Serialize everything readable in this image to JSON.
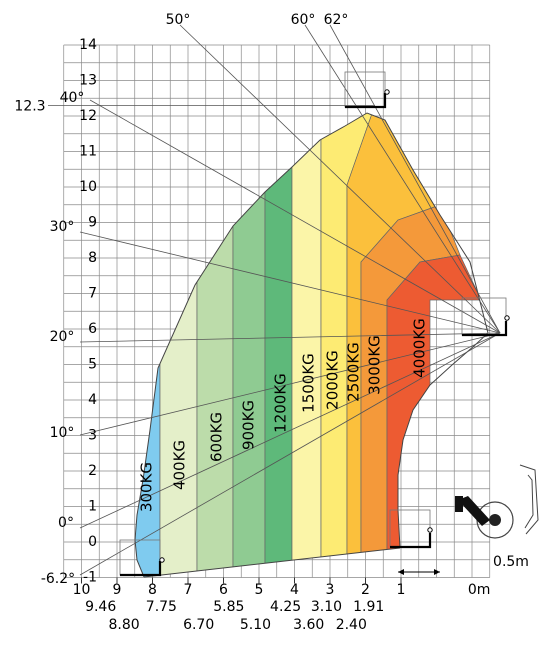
{
  "chart_data": {
    "type": "area",
    "title": "",
    "xlabel": "",
    "ylabel": "",
    "xlim": [
      10.8,
      -1.5
    ],
    "ylim": [
      -1,
      14
    ],
    "grid": true,
    "x_ticks": [
      10,
      9,
      8,
      7,
      6,
      5,
      4,
      3,
      2,
      1
    ],
    "x_tick_labels": [
      "10",
      "9",
      "8",
      "7",
      "6",
      "5",
      "4",
      "3",
      "2",
      "1"
    ],
    "x_sub_labels_row1": [
      {
        "x": 9.46,
        "label": "9.46"
      },
      {
        "x": 7.75,
        "label": "7.75"
      },
      {
        "x": 5.85,
        "label": "5.85"
      },
      {
        "x": 4.25,
        "label": "4.25"
      },
      {
        "x": 3.1,
        "label": "3.10"
      },
      {
        "x": 1.91,
        "label": "1.91"
      }
    ],
    "x_sub_labels_row2": [
      {
        "x": 8.8,
        "label": "8.80"
      },
      {
        "x": 6.7,
        "label": "6.70"
      },
      {
        "x": 5.1,
        "label": "5.10"
      },
      {
        "x": 3.6,
        "label": "3.60"
      },
      {
        "x": 2.4,
        "label": "2.40"
      }
    ],
    "y_ticks": [
      14,
      13,
      12,
      11,
      10,
      9,
      8,
      7,
      6,
      5,
      4,
      3,
      2,
      1,
      0,
      -1
    ],
    "y_tick_labels": [
      "14",
      "13",
      "12",
      "11",
      "10",
      "9",
      "8",
      "7",
      "6",
      "5",
      "4",
      "3",
      "2",
      "1",
      "0",
      "-1"
    ],
    "zero_label": "0m",
    "scale_label": "0.5m",
    "max_height_label": "12.3",
    "angles": [
      {
        "label": "-6.2°",
        "deg": -6.2
      },
      {
        "label": "0°",
        "deg": 0
      },
      {
        "label": "10°",
        "deg": 10
      },
      {
        "label": "20°",
        "deg": 20
      },
      {
        "label": "30°",
        "deg": 30
      },
      {
        "label": "40°",
        "deg": 40
      },
      {
        "label": "50°",
        "deg": 50
      },
      {
        "label": "60°",
        "deg": 60
      },
      {
        "label": "62°",
        "deg": 62
      }
    ],
    "load_zones": [
      {
        "label": "300KG",
        "color": "#7fcbef"
      },
      {
        "label": "400KG",
        "color": "#e4efc9"
      },
      {
        "label": "600KG",
        "color": "#bcdcaa"
      },
      {
        "label": "900KG",
        "color": "#8fcb92"
      },
      {
        "label": "1200KG",
        "color": "#5eb97a"
      },
      {
        "label": "1500KG",
        "color": "#fbf5a8"
      },
      {
        "label": "2000KG",
        "color": "#fdeb73"
      },
      {
        "label": "2500KG",
        "color": "#fbc03c"
      },
      {
        "label": "3000KG",
        "color": "#f4993a"
      },
      {
        "label": "4000KG",
        "color": "#ed5b32"
      }
    ]
  }
}
